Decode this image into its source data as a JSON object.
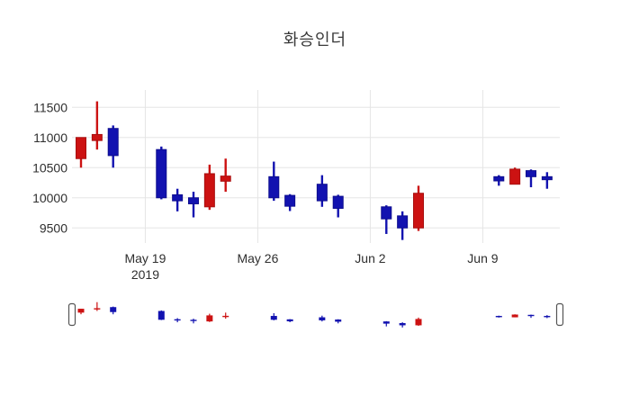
{
  "chart_data": {
    "type": "candlestick",
    "title": "화승인더",
    "colors": {
      "increasing": "#cc1212",
      "increasing_line": "#a80e0e",
      "decreasing": "#1212b0",
      "decreasing_line": "#0d0d8e",
      "grid": "#e5e5e5",
      "tick_text": "#2f2f2f",
      "slider_handle_border": "#555555"
    },
    "y_axis": {
      "ticks": [
        "9500",
        "10000",
        "10500",
        "11000",
        "11500"
      ],
      "tick_values": [
        9500,
        10000,
        10500,
        11000,
        11500
      ],
      "range": [
        9250,
        11788
      ],
      "grid": true
    },
    "x_axis": {
      "ticks": [
        {
          "label": "May 19",
          "sublabel": "2019",
          "day": 4
        },
        {
          "label": "May 26",
          "sublabel": "",
          "day": 11
        },
        {
          "label": "Jun 2",
          "sublabel": "",
          "day": 18
        },
        {
          "label": "Jun 9",
          "sublabel": "",
          "day": 25
        }
      ],
      "grid": true
    },
    "rangeslider": {
      "visible": true,
      "value_range": [
        9250,
        11700
      ],
      "handles": [
        "left",
        "right"
      ]
    },
    "candles": [
      {
        "date": "May 15",
        "day": 0,
        "open": 10650,
        "high": 11000,
        "low": 10500,
        "close": 11000,
        "dir": "up"
      },
      {
        "date": "May 16",
        "day": 1,
        "open": 10950,
        "high": 11600,
        "low": 10800,
        "close": 11050,
        "dir": "up"
      },
      {
        "date": "May 17",
        "day": 2,
        "open": 11150,
        "high": 11200,
        "low": 10500,
        "close": 10700,
        "dir": "down"
      },
      {
        "date": "May 20",
        "day": 5,
        "open": 10800,
        "high": 10850,
        "low": 9975,
        "close": 10000,
        "dir": "down"
      },
      {
        "date": "May 21",
        "day": 6,
        "open": 10050,
        "high": 10150,
        "low": 9775,
        "close": 9950,
        "dir": "down"
      },
      {
        "date": "May 22",
        "day": 7,
        "open": 10000,
        "high": 10100,
        "low": 9675,
        "close": 9900,
        "dir": "down"
      },
      {
        "date": "May 23",
        "day": 8,
        "open": 9850,
        "high": 10550,
        "low": 9800,
        "close": 10400,
        "dir": "up"
      },
      {
        "date": "May 24",
        "day": 9,
        "open": 10275,
        "high": 10650,
        "low": 10100,
        "close": 10360,
        "dir": "up"
      },
      {
        "date": "May 27",
        "day": 12,
        "open": 10350,
        "high": 10600,
        "low": 9950,
        "close": 10000,
        "dir": "down"
      },
      {
        "date": "May 28",
        "day": 13,
        "open": 10040,
        "high": 10060,
        "low": 9780,
        "close": 9860,
        "dir": "down"
      },
      {
        "date": "May 30",
        "day": 15,
        "open": 10225,
        "high": 10375,
        "low": 9850,
        "close": 9950,
        "dir": "down"
      },
      {
        "date": "May 31",
        "day": 16,
        "open": 10025,
        "high": 10050,
        "low": 9675,
        "close": 9825,
        "dir": "down"
      },
      {
        "date": "Jun 3",
        "day": 19,
        "open": 9850,
        "high": 9875,
        "low": 9400,
        "close": 9650,
        "dir": "down"
      },
      {
        "date": "Jun 4",
        "day": 20,
        "open": 9700,
        "high": 9775,
        "low": 9300,
        "close": 9500,
        "dir": "down"
      },
      {
        "date": "Jun 5",
        "day": 21,
        "open": 9500,
        "high": 10200,
        "low": 9450,
        "close": 10075,
        "dir": "up"
      },
      {
        "date": "Jun 10",
        "day": 26,
        "open": 10350,
        "high": 10375,
        "low": 10200,
        "close": 10280,
        "dir": "down"
      },
      {
        "date": "Jun 11",
        "day": 27,
        "open": 10225,
        "high": 10500,
        "low": 10225,
        "close": 10475,
        "dir": "up"
      },
      {
        "date": "Jun 12",
        "day": 28,
        "open": 10450,
        "high": 10470,
        "low": 10175,
        "close": 10350,
        "dir": "down"
      },
      {
        "date": "Jun 13",
        "day": 29,
        "open": 10350,
        "high": 10425,
        "low": 10150,
        "close": 10300,
        "dir": "down"
      }
    ]
  }
}
